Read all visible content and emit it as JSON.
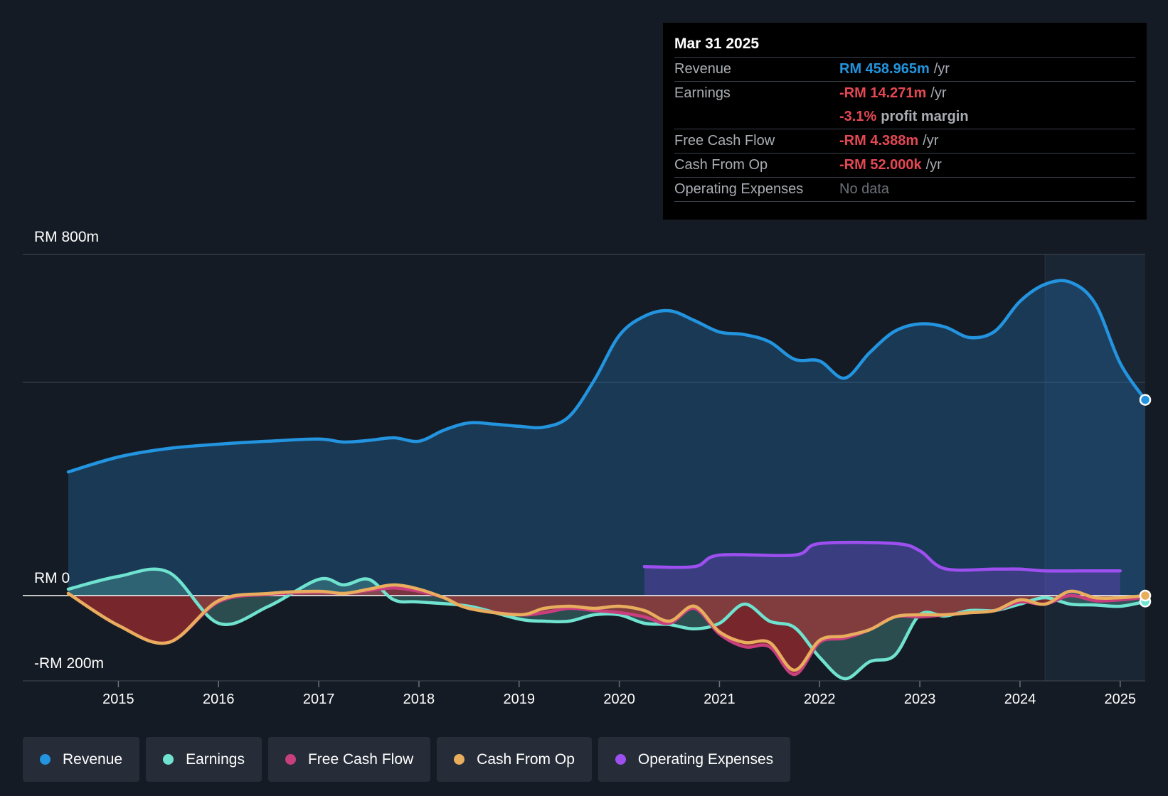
{
  "tooltip": {
    "date": "Mar 31 2025",
    "rows": [
      {
        "label": "Revenue",
        "value": "RM 458.965m",
        "unit": "/yr",
        "color": "#2394df"
      },
      {
        "label": "Earnings",
        "value": "-RM 14.271m",
        "unit": "/yr",
        "color": "#e64853"
      },
      {
        "label": "",
        "value": "-3.1%",
        "unit": "profit margin",
        "color": "#e64853"
      },
      {
        "label": "Free Cash Flow",
        "value": "-RM 4.388m",
        "unit": "/yr",
        "color": "#e64853"
      },
      {
        "label": "Cash From Op",
        "value": "-RM 52.000k",
        "unit": "/yr",
        "color": "#e64853"
      },
      {
        "label": "Operating Expenses",
        "value": "No data",
        "unit": "",
        "color": "#6b7079"
      }
    ]
  },
  "legend": [
    {
      "label": "Revenue",
      "color": "#2394df"
    },
    {
      "label": "Earnings",
      "color": "#6fe3cf"
    },
    {
      "label": "Free Cash Flow",
      "color": "#c83f7e"
    },
    {
      "label": "Cash From Op",
      "color": "#e8ad5d"
    },
    {
      "label": "Operating Expenses",
      "color": "#9d4ff0"
    }
  ],
  "chart_data": {
    "type": "line",
    "title": "",
    "currency_unit": "RM m",
    "y_labels": {
      "top": "RM 800m",
      "zero": "RM 0",
      "bottom": "-RM 200m"
    },
    "ylim": [
      -200,
      800
    ],
    "xlim": [
      2014.5,
      2025.25
    ],
    "x_ticks": [
      {
        "value": 2015,
        "label": "2015"
      },
      {
        "value": 2016,
        "label": "2016"
      },
      {
        "value": 2017,
        "label": "2017"
      },
      {
        "value": 2018,
        "label": "2018"
      },
      {
        "value": 2019,
        "label": "2019"
      },
      {
        "value": 2020,
        "label": "2020"
      },
      {
        "value": 2021,
        "label": "2021"
      },
      {
        "value": 2022,
        "label": "2022"
      },
      {
        "value": 2023,
        "label": "2023"
      },
      {
        "value": 2024,
        "label": "2024"
      },
      {
        "value": 2025,
        "label": "2025"
      }
    ],
    "gridlines": [
      800,
      500,
      0,
      -200
    ],
    "highlight_start": 2024.25,
    "series": [
      {
        "name": "Revenue",
        "color": "#2394df",
        "fill": "rgba(34,120,190,0.32)",
        "x": [
          2014.5,
          2015.0,
          2015.5,
          2016.0,
          2016.5,
          2017.0,
          2017.25,
          2017.5,
          2017.75,
          2018.0,
          2018.25,
          2018.5,
          2018.75,
          2019.0,
          2019.25,
          2019.5,
          2019.75,
          2020.0,
          2020.25,
          2020.5,
          2020.75,
          2021.0,
          2021.25,
          2021.5,
          2021.75,
          2022.0,
          2022.25,
          2022.5,
          2022.75,
          2023.0,
          2023.25,
          2023.5,
          2023.75,
          2024.0,
          2024.25,
          2024.5,
          2024.75,
          2025.0,
          2025.25
        ],
        "values": [
          290,
          325,
          345,
          355,
          362,
          367,
          360,
          364,
          370,
          362,
          388,
          405,
          402,
          397,
          395,
          420,
          505,
          610,
          655,
          668,
          645,
          618,
          612,
          595,
          554,
          550,
          510,
          570,
          620,
          637,
          630,
          605,
          620,
          690,
          730,
          735,
          685,
          545,
          459
        ]
      },
      {
        "name": "Earnings",
        "color": "#6fe3cf",
        "fill": "rgba(111,227,207,0.25)",
        "x": [
          2014.5,
          2015.0,
          2015.5,
          2016.0,
          2016.5,
          2017.0,
          2017.25,
          2017.5,
          2017.75,
          2018.0,
          2018.5,
          2019.0,
          2019.25,
          2019.5,
          2019.75,
          2020.0,
          2020.25,
          2020.5,
          2020.75,
          2021.0,
          2021.25,
          2021.5,
          2021.75,
          2022.0,
          2022.25,
          2022.5,
          2022.75,
          2023.0,
          2023.25,
          2023.5,
          2023.75,
          2024.0,
          2024.25,
          2024.5,
          2024.75,
          2025.0,
          2025.25
        ],
        "values": [
          15,
          45,
          55,
          -65,
          -25,
          38,
          25,
          38,
          -10,
          -15,
          -25,
          -55,
          -60,
          -60,
          -45,
          -45,
          -65,
          -68,
          -78,
          -65,
          -20,
          -60,
          -75,
          -145,
          -195,
          -155,
          -140,
          -45,
          -48,
          -35,
          -35,
          -20,
          -5,
          -20,
          -22,
          -25,
          -14
        ]
      },
      {
        "name": "Free Cash Flow",
        "color": "#c83f7e",
        "fill": "rgba(200,50,50,0.55)",
        "x": [
          2014.5,
          2015.0,
          2015.5,
          2016.0,
          2016.5,
          2017.0,
          2017.25,
          2017.5,
          2017.75,
          2018.0,
          2018.25,
          2018.5,
          2019.0,
          2019.25,
          2019.5,
          2019.75,
          2020.0,
          2020.25,
          2020.5,
          2020.75,
          2021.0,
          2021.25,
          2021.5,
          2021.75,
          2022.0,
          2022.25,
          2022.5,
          2022.75,
          2023.0,
          2023.25,
          2023.5,
          2023.75,
          2024.0,
          2024.25,
          2024.5,
          2024.75,
          2025.0,
          2025.25
        ],
        "values": [
          5,
          -70,
          -110,
          -15,
          3,
          8,
          5,
          12,
          18,
          10,
          -5,
          -30,
          -45,
          -40,
          -30,
          -35,
          -40,
          -50,
          -65,
          -30,
          -90,
          -120,
          -120,
          -185,
          -110,
          -100,
          -80,
          -50,
          -50,
          -45,
          -40,
          -35,
          -15,
          -20,
          0,
          -12,
          -10,
          -4
        ]
      },
      {
        "name": "Cash From Op",
        "color": "#e8ad5d",
        "fill": "none",
        "x": [
          2014.5,
          2015.0,
          2015.5,
          2016.0,
          2016.5,
          2017.0,
          2017.25,
          2017.5,
          2017.75,
          2018.0,
          2018.25,
          2018.5,
          2019.0,
          2019.25,
          2019.5,
          2019.75,
          2020.0,
          2020.25,
          2020.5,
          2020.75,
          2021.0,
          2021.25,
          2021.5,
          2021.75,
          2022.0,
          2022.25,
          2022.5,
          2022.75,
          2023.0,
          2023.25,
          2023.5,
          2023.75,
          2024.0,
          2024.25,
          2024.5,
          2024.75,
          2025.0,
          2025.25
        ],
        "values": [
          5,
          -70,
          -110,
          -12,
          5,
          10,
          5,
          15,
          25,
          15,
          -5,
          -30,
          -45,
          -30,
          -25,
          -30,
          -25,
          -35,
          -60,
          -25,
          -85,
          -110,
          -110,
          -175,
          -105,
          -95,
          -80,
          -50,
          -45,
          -45,
          -40,
          -35,
          -10,
          -20,
          10,
          -5,
          -5,
          0
        ]
      },
      {
        "name": "Operating Expenses",
        "color": "#9d4ff0",
        "fill": "rgba(120,70,210,0.35)",
        "x": [
          2020.25,
          2020.75,
          2021.0,
          2021.75,
          2022.0,
          2022.75,
          2023.0,
          2023.25,
          2023.75,
          2024.0,
          2024.25,
          2024.75,
          2025.0
        ],
        "values": [
          68,
          68,
          95,
          95,
          122,
          122,
          105,
          63,
          62,
          62,
          58,
          58,
          58
        ]
      }
    ]
  }
}
